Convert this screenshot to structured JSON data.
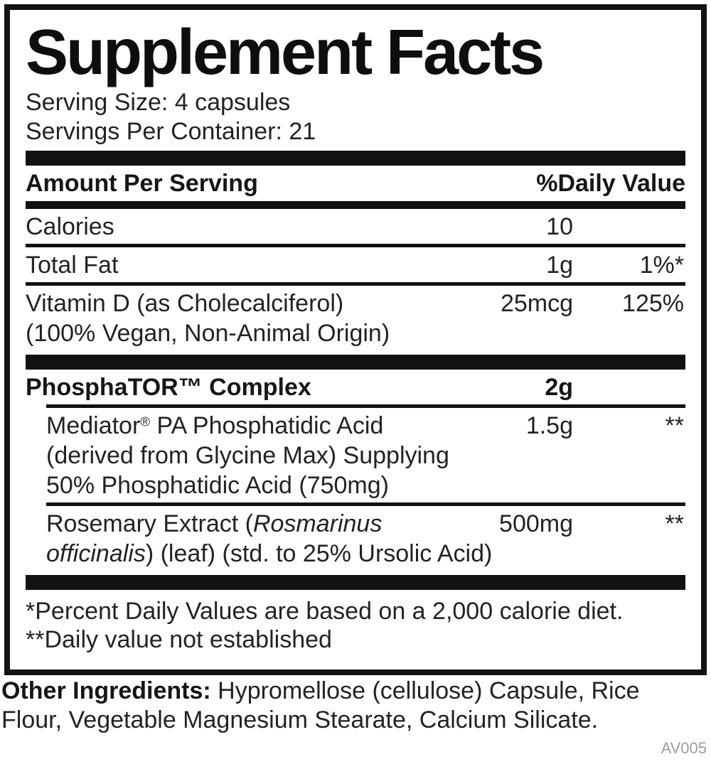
{
  "panel": {
    "title": "Supplement Facts",
    "serving_size": "Serving Size: 4 capsules",
    "servings_per_container": "Servings Per Container: 21",
    "header": {
      "amount_label": "Amount Per Serving",
      "dv_label": "%Daily Value"
    },
    "sections": [
      {
        "rows": [
          {
            "segments": [
              {
                "t": "Calories"
              }
            ],
            "amount": "10",
            "dv": "",
            "bold": false,
            "indent": false
          },
          {
            "segments": [
              {
                "t": "Total Fat"
              }
            ],
            "amount": "1g",
            "dv": "1%*",
            "bold": false,
            "indent": false
          },
          {
            "segments": [
              {
                "t": "Vitamin D (as Cholecalciferol)\n(100% Vegan, Non-Animal Origin)"
              }
            ],
            "amount": "25mcg",
            "dv": "125%",
            "bold": false,
            "indent": false
          }
        ]
      },
      {
        "rows": [
          {
            "segments": [
              {
                "t": "PhosphaTOR™ Complex"
              }
            ],
            "amount": "2g",
            "dv": "",
            "bold": true,
            "indent": false
          },
          {
            "segments": [
              {
                "t": "Mediator"
              },
              {
                "t": "®",
                "sup": true
              },
              {
                "t": " PA Phosphatidic Acid\n(derived from Glycine Max) Supplying\n50% Phosphatidic Acid (750mg)"
              }
            ],
            "amount": "1.5g",
            "dv": "**",
            "bold": false,
            "indent": true
          },
          {
            "segments": [
              {
                "t": "Rosemary Extract ("
              },
              {
                "t": "Rosmarinus\nofficinalis",
                "i": true
              },
              {
                "t": ") (leaf) (std. to 25% Ursolic Acid)"
              }
            ],
            "amount": "500mg",
            "dv": "**",
            "bold": false,
            "indent": true
          }
        ]
      }
    ],
    "footnotes": [
      "*Percent Daily Values are based on a 2,000 calorie diet.",
      "**Daily value not established"
    ],
    "other_ingredients_segments": [
      {
        "t": "Other Ingredients:",
        "b": true
      },
      {
        "t": " Hypromellose (cellulose) Capsule, Rice\nFlour, Vegetable Magnesium Stearate, Calcium Silicate."
      }
    ],
    "footer_code": "AV005",
    "colors": {
      "ink": "#121212",
      "text": "#232323",
      "muted": "#9e9e9e",
      "background": "#ffffff"
    }
  }
}
